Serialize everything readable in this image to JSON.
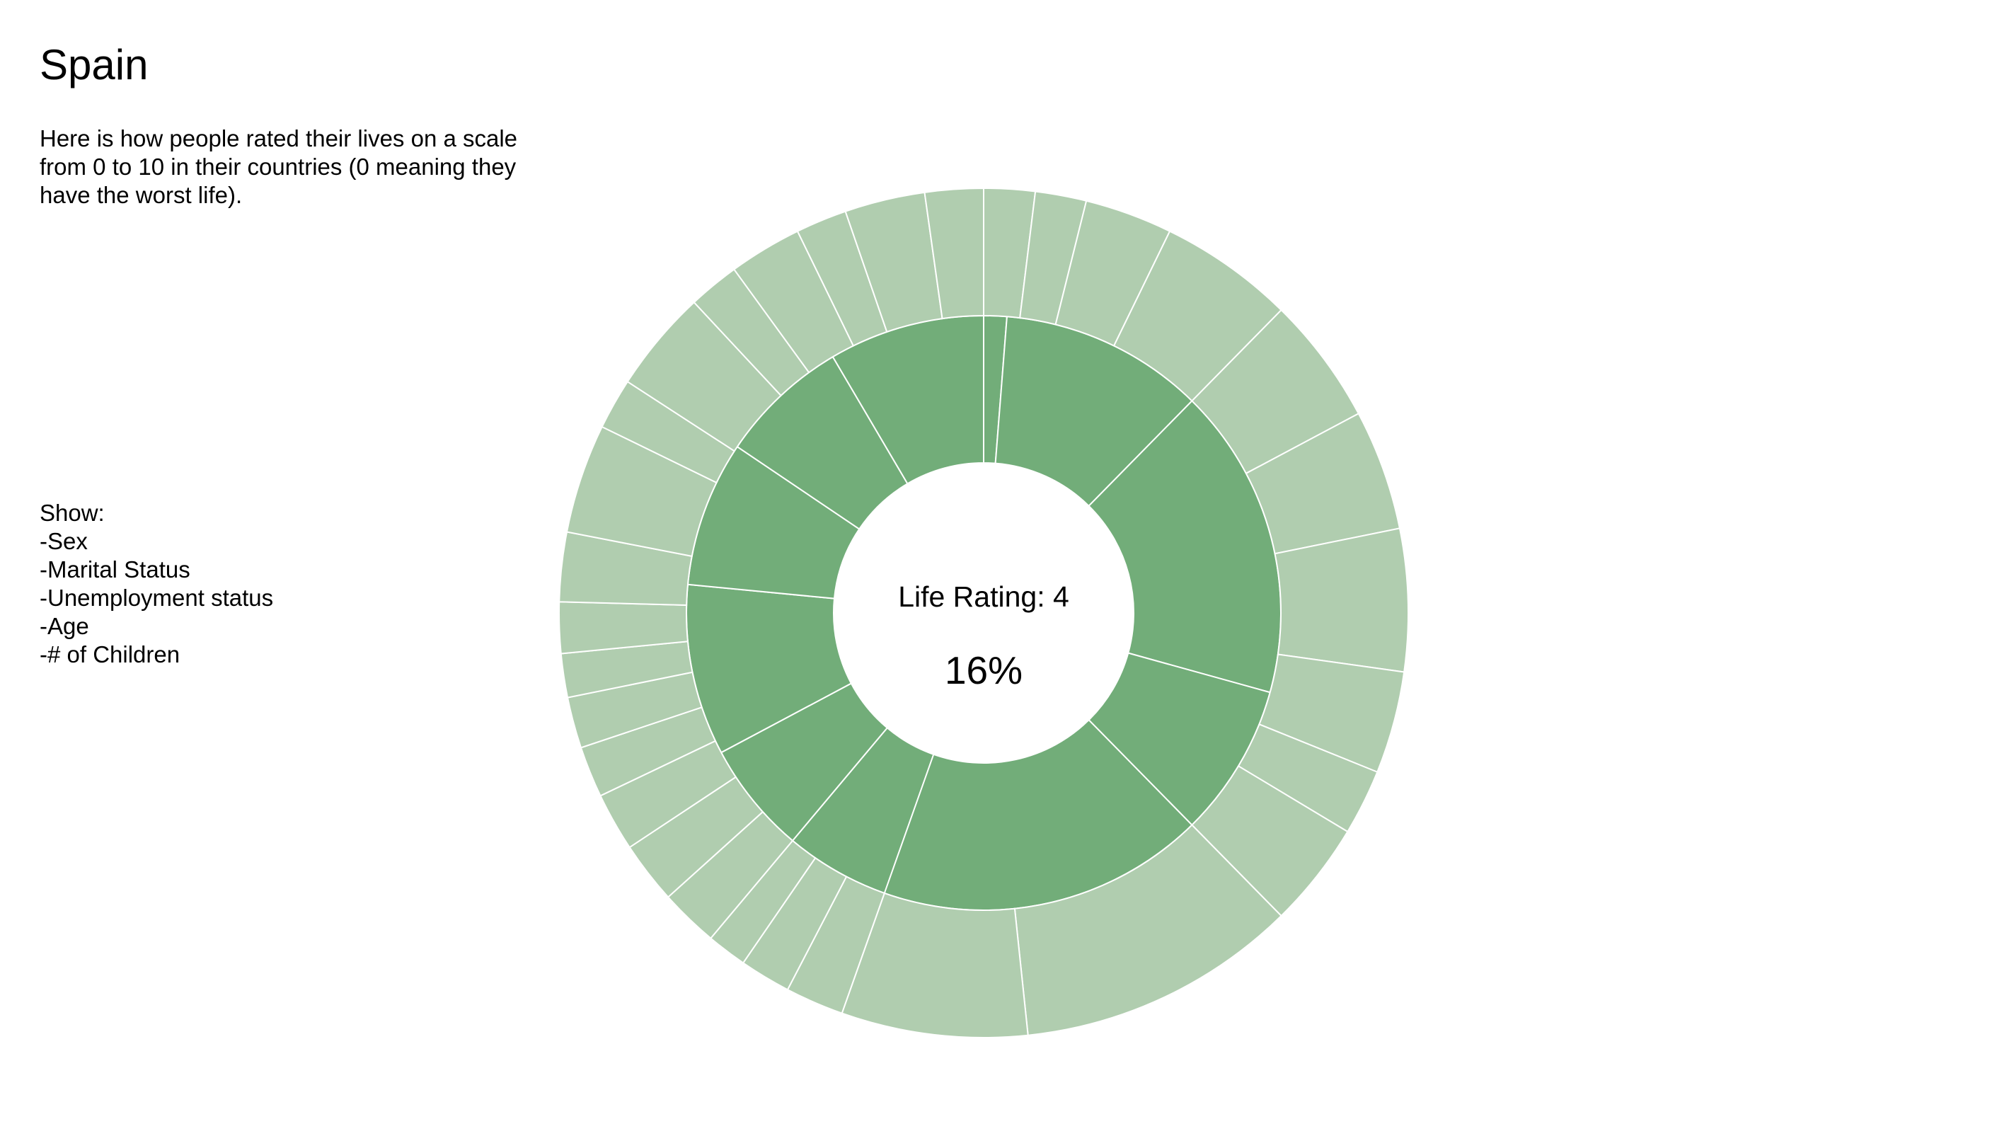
{
  "header": {
    "title": "Spain",
    "description": "Here is how people rated their lives on a scale from 0 to 10 in their countries (0 meaning they have the worst life)."
  },
  "controls": {
    "heading": "Show:",
    "options": [
      "-Sex",
      "-Marital Status",
      "-Unemployment status",
      "-Age",
      "-# of Children"
    ]
  },
  "center": {
    "label": "Life Rating: 4",
    "value": "16%"
  },
  "colors": {
    "inner": "#72ad79",
    "outer": "#b0cdaf",
    "separator": "#ffffff"
  },
  "chart_data": {
    "type": "sunburst",
    "title": "Spain",
    "center_label": "Life Rating: 4",
    "center_value": "16%",
    "inner_ring": [
      {
        "start_deg": 0,
        "sweep_deg": 4.5
      },
      {
        "start_deg": 4.5,
        "sweep_deg": 40.0
      },
      {
        "start_deg": 44.5,
        "sweep_deg": 61.0
      },
      {
        "start_deg": 105.5,
        "sweep_deg": 30.0
      },
      {
        "start_deg": 135.5,
        "sweep_deg": 64.5
      },
      {
        "start_deg": 199.5,
        "sweep_deg": 20.5
      },
      {
        "start_deg": 220.0,
        "sweep_deg": 22.0
      },
      {
        "start_deg": 242.0,
        "sweep_deg": 33.5
      },
      {
        "start_deg": 275.5,
        "sweep_deg": 28.5
      },
      {
        "start_deg": 304.0,
        "sweep_deg": 25.5
      },
      {
        "start_deg": 329.5,
        "sweep_deg": 30.5
      }
    ],
    "outer_ring_boundaries_deg": [
      0,
      7,
      14,
      26,
      44.5,
      62,
      78.5,
      98,
      112,
      121,
      135.5,
      174,
      199.5,
      207.5,
      214.5,
      220,
      228,
      236.5,
      244.5,
      251.5,
      258.5,
      264.5,
      271.5,
      281,
      296,
      303,
      317,
      324,
      334,
      341,
      352,
      360
    ]
  }
}
